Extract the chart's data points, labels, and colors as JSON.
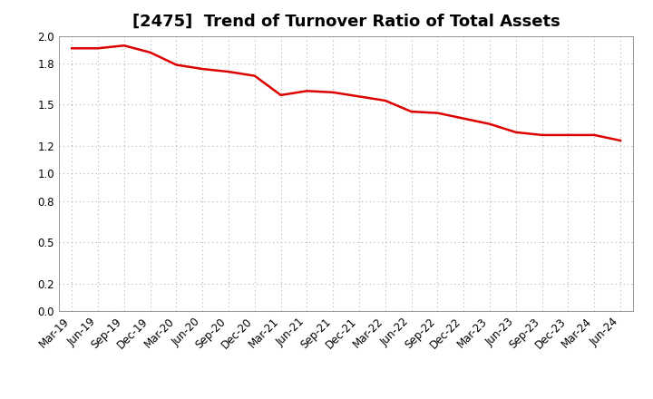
{
  "title": "[2475]  Trend of Turnover Ratio of Total Assets",
  "x_labels": [
    "Mar-19",
    "Jun-19",
    "Sep-19",
    "Dec-19",
    "Mar-20",
    "Jun-20",
    "Sep-20",
    "Dec-20",
    "Mar-21",
    "Jun-21",
    "Sep-21",
    "Dec-21",
    "Mar-22",
    "Jun-22",
    "Sep-22",
    "Dec-22",
    "Mar-23",
    "Jun-23",
    "Sep-23",
    "Dec-23",
    "Mar-24",
    "Jun-24"
  ],
  "values": [
    1.91,
    1.91,
    1.93,
    1.88,
    1.79,
    1.76,
    1.74,
    1.71,
    1.57,
    1.6,
    1.59,
    1.56,
    1.53,
    1.45,
    1.44,
    1.4,
    1.36,
    1.3,
    1.28,
    1.28,
    1.28,
    1.24
  ],
  "line_color": "#dd0000",
  "line_width": 1.8,
  "ylim": [
    0.0,
    2.0
  ],
  "yticks": [
    0.0,
    0.2,
    0.5,
    0.8,
    1.0,
    1.2,
    1.5,
    1.8,
    2.0
  ],
  "grid_color": "#b0b0b0",
  "bg_color": "#ffffff",
  "title_fontsize": 13,
  "tick_fontsize": 8.5,
  "label_rotation": 45
}
